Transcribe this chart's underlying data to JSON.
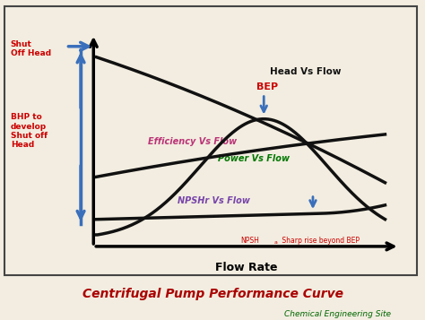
{
  "title": "Centrifugal Pump Performance Curve",
  "subtitle": "Chemical Engineering Site",
  "title_color": "#aa0000",
  "subtitle_color": "#006600",
  "bg_color": "#f2ede0",
  "border_color": "#555555",
  "xlabel": "Flow Rate",
  "curve_color": "#111111",
  "curve_lw": 2.5,
  "label_head": "Head Vs Flow",
  "label_eff": "Efficiency Vs Flow",
  "label_power": "Power Vs Flow",
  "label_npsh": "NPSHr Vs Flow",
  "label_head_color": "#111111",
  "label_eff_color": "#bb3377",
  "label_power_color": "#007700",
  "label_npsh_color": "#7744aa",
  "shut_off_head_text": "Shut\nOff Head",
  "bhp_text": "BHP to\ndevelop\nShut off\nHead",
  "bep_text": "BEP",
  "npsh_rise_text": "NPSH",
  "npsh_rise_sub": "a",
  "npsh_rise_rest": " Sharp rise beyond BEP",
  "annotation_color_red": "#cc0000",
  "annotation_color_blue": "#3a6fbb"
}
